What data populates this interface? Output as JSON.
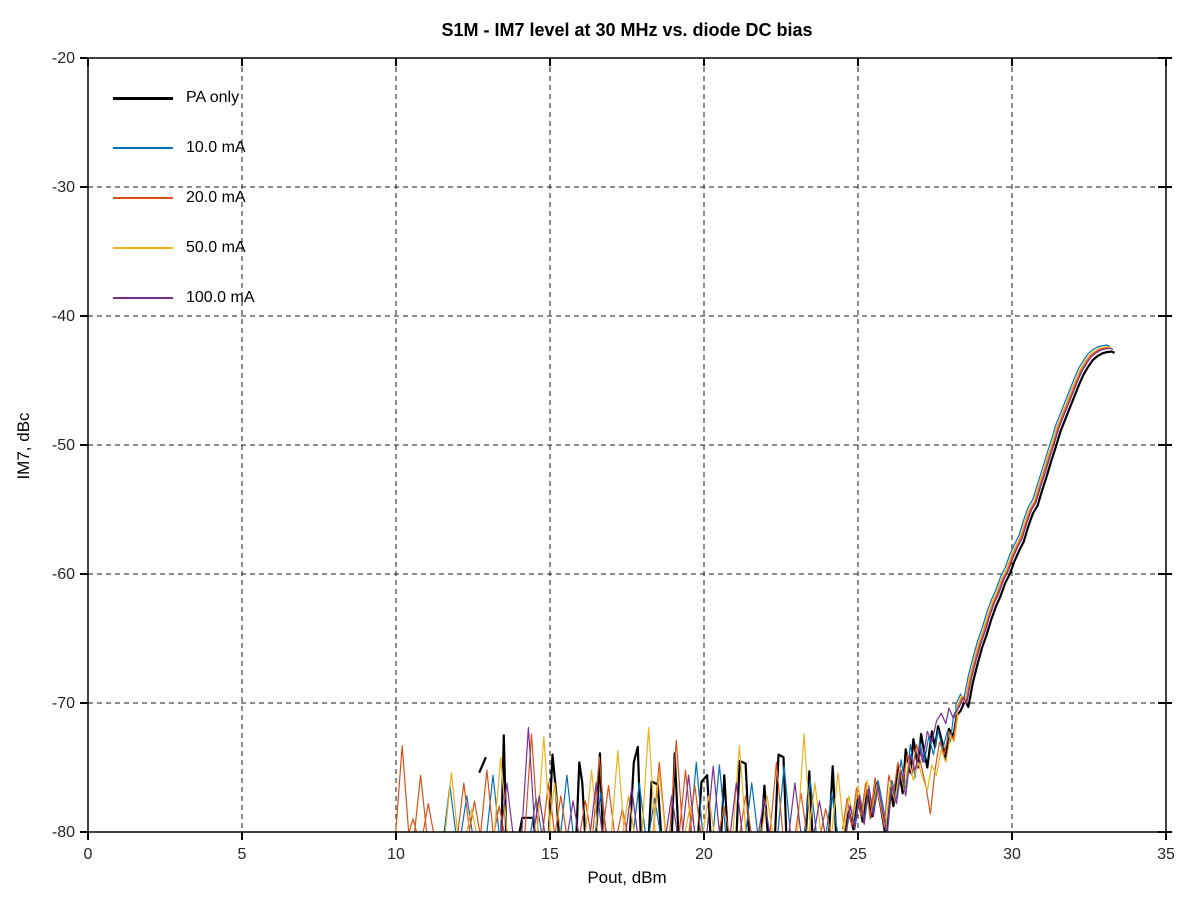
{
  "chart_data": {
    "type": "line",
    "title": "S1M - IM7 level at 30 MHz vs. diode DC bias",
    "xlabel": "Pout, dBm",
    "ylabel": "IM7, dBc",
    "xlim": [
      0,
      35
    ],
    "ylim": [
      -80,
      -20
    ],
    "xticks": [
      0,
      5,
      10,
      15,
      20,
      25,
      30,
      35
    ],
    "yticks": [
      -20,
      -30,
      -40,
      -50,
      -60,
      -70,
      -80
    ],
    "grid": true,
    "grid_style": "dashed",
    "grid_color": "#1a1a1a",
    "axis_color": "#000000",
    "background_color": "#ffffff",
    "legend_position": "upper-left-inside",
    "rise": [
      [
        28.3,
        -70.4
      ],
      [
        28.45,
        -69.6
      ],
      [
        28.55,
        -70.1
      ],
      [
        28.7,
        -68.2
      ],
      [
        28.85,
        -66.8
      ],
      [
        29.0,
        -65.5
      ],
      [
        29.15,
        -64.5
      ],
      [
        29.3,
        -63.3
      ],
      [
        29.45,
        -62.3
      ],
      [
        29.6,
        -61.5
      ],
      [
        29.75,
        -60.5
      ],
      [
        29.9,
        -59.8
      ],
      [
        30.05,
        -58.8
      ],
      [
        30.2,
        -58.0
      ],
      [
        30.35,
        -57.3
      ],
      [
        30.5,
        -56.1
      ],
      [
        30.65,
        -55.1
      ],
      [
        30.8,
        -54.5
      ],
      [
        30.95,
        -53.3
      ],
      [
        31.1,
        -52.2
      ],
      [
        31.25,
        -51.0
      ],
      [
        31.4,
        -49.9
      ],
      [
        31.55,
        -48.7
      ],
      [
        31.7,
        -47.8
      ],
      [
        31.85,
        -46.9
      ],
      [
        32.0,
        -46.0
      ],
      [
        32.15,
        -45.1
      ],
      [
        32.3,
        -44.3
      ],
      [
        32.45,
        -43.7
      ],
      [
        32.6,
        -43.2
      ],
      [
        32.75,
        -42.9
      ],
      [
        32.9,
        -42.7
      ],
      [
        33.05,
        -42.6
      ],
      [
        33.2,
        -42.55
      ],
      [
        33.3,
        -42.65
      ]
    ],
    "series": [
      {
        "name": "PA only",
        "color": "#000000",
        "width": 2.2,
        "rise_dx": 0.03,
        "rise_dy": -0.2,
        "spikes": [],
        "segments": [
          [
            [
              12.7,
              -75.4
            ],
            [
              12.92,
              -74.2
            ]
          ],
          [
            [
              13.42,
              -80.6
            ],
            [
              13.5,
              -72.5
            ],
            [
              13.58,
              -80.6
            ]
          ],
          [
            [
              13.98,
              -80.4
            ],
            [
              14.1,
              -78.9
            ],
            [
              14.45,
              -78.9
            ],
            [
              14.52,
              -80.4
            ]
          ],
          [
            [
              14.95,
              -80.6
            ],
            [
              15.08,
              -74.0
            ],
            [
              15.2,
              -77.0
            ],
            [
              15.3,
              -80.6
            ]
          ],
          [
            [
              15.85,
              -80.6
            ],
            [
              15.95,
              -74.6
            ],
            [
              16.05,
              -76.2
            ],
            [
              16.15,
              -80.6
            ]
          ],
          [
            [
              16.5,
              -80.6
            ],
            [
              16.62,
              -73.9
            ],
            [
              16.72,
              -80.6
            ]
          ],
          [
            [
              17.58,
              -80.6
            ],
            [
              17.72,
              -74.6
            ],
            [
              17.85,
              -73.4
            ],
            [
              17.95,
              -80.6
            ]
          ],
          [
            [
              18.2,
              -80.6
            ],
            [
              18.3,
              -76.1
            ],
            [
              18.5,
              -76.3
            ],
            [
              18.62,
              -80.6
            ]
          ],
          [
            [
              18.95,
              -80.6
            ],
            [
              19.05,
              -73.9
            ],
            [
              19.18,
              -80.6
            ]
          ],
          [
            [
              19.8,
              -80.6
            ],
            [
              19.92,
              -76.1
            ],
            [
              20.1,
              -75.6
            ],
            [
              20.22,
              -80.6
            ]
          ],
          [
            [
              20.55,
              -80.6
            ],
            [
              20.66,
              -75.6
            ],
            [
              20.78,
              -80.6
            ]
          ],
          [
            [
              21.05,
              -80.6
            ],
            [
              21.16,
              -74.5
            ],
            [
              21.35,
              -74.7
            ],
            [
              21.47,
              -80.6
            ]
          ],
          [
            [
              21.85,
              -80.6
            ],
            [
              21.96,
              -76.4
            ],
            [
              22.08,
              -80.6
            ]
          ],
          [
            [
              22.3,
              -80.6
            ],
            [
              22.42,
              -74.0
            ],
            [
              22.58,
              -74.2
            ],
            [
              22.68,
              -80.6
            ]
          ],
          [
            [
              23.3,
              -80.6
            ],
            [
              23.42,
              -75.3
            ],
            [
              23.53,
              -80.6
            ]
          ],
          [
            [
              24.05,
              -80.6
            ],
            [
              24.18,
              -74.9
            ],
            [
              24.3,
              -80.6
            ]
          ]
        ],
        "pre": [
          [
            24.55,
            -80.6
          ],
          [
            24.7,
            -78.4
          ],
          [
            24.85,
            -79.8
          ],
          [
            25.0,
            -77.4
          ],
          [
            25.15,
            -79.2
          ],
          [
            25.3,
            -76.8
          ],
          [
            25.45,
            -78.8
          ],
          [
            25.6,
            -76.2
          ],
          [
            25.75,
            -78.2
          ],
          [
            25.9,
            -80.4
          ],
          [
            26.05,
            -76.6
          ],
          [
            26.15,
            -78.0
          ],
          [
            26.3,
            -74.8
          ],
          [
            26.45,
            -77.0
          ],
          [
            26.55,
            -73.6
          ],
          [
            26.7,
            -75.4
          ],
          [
            26.8,
            -72.8
          ],
          [
            26.95,
            -75.0
          ],
          [
            27.05,
            -72.4
          ],
          [
            27.15,
            -73.8
          ],
          [
            27.25,
            -75.0
          ],
          [
            27.4,
            -72.2
          ],
          [
            27.5,
            -73.4
          ],
          [
            27.6,
            -71.8
          ],
          [
            27.75,
            -73.2
          ],
          [
            27.85,
            -74.4
          ],
          [
            27.95,
            -72.0
          ],
          [
            28.1,
            -72.6
          ],
          [
            28.2,
            -71.0
          ]
        ]
      },
      {
        "name": "10.0 mA",
        "color": "#0072BD",
        "width": 1.2,
        "rise_dx": -0.12,
        "rise_dy": 0.3,
        "spikes": [
          [
            11.75,
            -76.4
          ],
          [
            12.3,
            -77.2
          ],
          [
            13.15,
            -75.6
          ],
          [
            14.55,
            -77.4
          ],
          [
            15.55,
            -75.6
          ],
          [
            16.65,
            -77.0
          ],
          [
            17.9,
            -76.2
          ],
          [
            18.4,
            -77.4
          ],
          [
            19.75,
            -74.6
          ],
          [
            20.5,
            -74.8
          ],
          [
            21.55,
            -76.2
          ],
          [
            22.6,
            -74.9
          ],
          [
            23.45,
            -76.0
          ],
          [
            24.15,
            -77.0
          ]
        ],
        "segments": [],
        "pre": [
          [
            24.6,
            -80.2
          ],
          [
            24.75,
            -77.8
          ],
          [
            24.9,
            -79.4
          ],
          [
            25.05,
            -77.0
          ],
          [
            25.2,
            -79.0
          ],
          [
            25.35,
            -76.4
          ],
          [
            25.5,
            -78.6
          ],
          [
            25.65,
            -76.0
          ],
          [
            25.8,
            -77.8
          ],
          [
            25.95,
            -80.0
          ],
          [
            26.1,
            -76.0
          ],
          [
            26.25,
            -77.4
          ],
          [
            26.4,
            -74.4
          ],
          [
            26.55,
            -76.6
          ],
          [
            26.7,
            -73.2
          ],
          [
            26.85,
            -75.8
          ],
          [
            27.0,
            -73.0
          ],
          [
            27.15,
            -74.6
          ],
          [
            27.3,
            -72.6
          ],
          [
            27.45,
            -74.0
          ],
          [
            27.6,
            -72.1
          ],
          [
            27.75,
            -73.6
          ],
          [
            27.9,
            -72.2
          ],
          [
            28.0,
            -73.0
          ],
          [
            28.1,
            -71.0
          ],
          [
            28.18,
            -70.6
          ]
        ]
      },
      {
        "name": "20.0 mA",
        "color": "#D95319",
        "width": 1.2,
        "rise_dx": -0.05,
        "rise_dy": 0.1,
        "spikes": [
          [
            10.2,
            -73.3
          ],
          [
            10.55,
            -79.0
          ],
          [
            10.8,
            -75.6
          ],
          [
            11.05,
            -77.8
          ],
          [
            12.2,
            -76.2
          ],
          [
            12.55,
            -77.6
          ],
          [
            12.95,
            -75.2
          ],
          [
            13.35,
            -78.0
          ],
          [
            14.4,
            -72.4
          ],
          [
            14.95,
            -76.2
          ],
          [
            15.35,
            -77.2
          ],
          [
            16.15,
            -77.6
          ],
          [
            16.6,
            -74.2
          ],
          [
            16.9,
            -76.4
          ],
          [
            17.35,
            -78.2
          ],
          [
            18.55,
            -74.6
          ],
          [
            19.1,
            -72.9
          ],
          [
            19.4,
            -75.2
          ],
          [
            19.7,
            -76.4
          ],
          [
            20.65,
            -78.0
          ],
          [
            21.35,
            -77.2
          ],
          [
            22.35,
            -74.6
          ],
          [
            23.15,
            -77.0
          ],
          [
            23.95,
            -78.2
          ]
        ],
        "segments": [],
        "pre": [
          [
            24.5,
            -79.8
          ],
          [
            24.65,
            -77.4
          ],
          [
            24.8,
            -79.6
          ],
          [
            24.95,
            -76.6
          ],
          [
            25.1,
            -78.8
          ],
          [
            25.25,
            -76.2
          ],
          [
            25.4,
            -79.0
          ],
          [
            25.55,
            -75.8
          ],
          [
            25.7,
            -77.6
          ],
          [
            25.85,
            -79.6
          ],
          [
            26.0,
            -75.6
          ],
          [
            26.15,
            -77.0
          ],
          [
            26.3,
            -74.6
          ],
          [
            26.45,
            -76.2
          ],
          [
            26.6,
            -74.0
          ],
          [
            26.75,
            -75.6
          ],
          [
            26.9,
            -73.2
          ],
          [
            27.05,
            -74.8
          ],
          [
            27.2,
            -76.4
          ],
          [
            27.35,
            -78.6
          ],
          [
            27.5,
            -75.2
          ],
          [
            27.65,
            -73.0
          ],
          [
            27.8,
            -74.0
          ],
          [
            27.95,
            -72.2
          ],
          [
            28.1,
            -72.8
          ],
          [
            28.22,
            -70.8
          ]
        ]
      },
      {
        "name": "50.0 mA",
        "color": "#EDB120",
        "width": 1.2,
        "rise_dx": -0.08,
        "rise_dy": 0.18,
        "spikes": [
          [
            11.8,
            -75.4
          ],
          [
            12.45,
            -78.2
          ],
          [
            13.4,
            -74.2
          ],
          [
            14.8,
            -72.6
          ],
          [
            15.15,
            -76.2
          ],
          [
            16.35,
            -75.2
          ],
          [
            17.2,
            -73.7
          ],
          [
            17.55,
            -77.2
          ],
          [
            18.2,
            -71.9
          ],
          [
            18.55,
            -75.4
          ],
          [
            19.55,
            -78.0
          ],
          [
            20.15,
            -77.2
          ],
          [
            21.15,
            -73.3
          ],
          [
            22.05,
            -77.2
          ],
          [
            23.25,
            -72.4
          ],
          [
            23.6,
            -76.2
          ],
          [
            24.35,
            -75.4
          ]
        ],
        "segments": [],
        "pre": [
          [
            24.55,
            -80.0
          ],
          [
            24.7,
            -77.2
          ],
          [
            24.85,
            -79.0
          ],
          [
            25.0,
            -76.4
          ],
          [
            25.15,
            -78.6
          ],
          [
            25.3,
            -76.0
          ],
          [
            25.45,
            -78.4
          ],
          [
            25.6,
            -76.4
          ],
          [
            25.75,
            -78.0
          ],
          [
            25.9,
            -79.8
          ],
          [
            26.05,
            -76.2
          ],
          [
            26.2,
            -77.6
          ],
          [
            26.35,
            -75.0
          ],
          [
            26.5,
            -76.8
          ],
          [
            26.65,
            -74.4
          ],
          [
            26.8,
            -76.0
          ],
          [
            26.95,
            -74.6
          ],
          [
            27.1,
            -75.8
          ],
          [
            27.25,
            -76.8
          ],
          [
            27.4,
            -74.8
          ],
          [
            27.55,
            -75.6
          ],
          [
            27.7,
            -73.6
          ],
          [
            27.85,
            -74.6
          ],
          [
            28.0,
            -72.6
          ],
          [
            28.12,
            -73.0
          ],
          [
            28.24,
            -71.0
          ]
        ]
      },
      {
        "name": "100.0 mA",
        "color": "#7E2F8E",
        "width": 1.2,
        "rise_dx": -0.02,
        "rise_dy": 0.05,
        "spikes": [
          [
            13.6,
            -76.2
          ],
          [
            14.3,
            -71.9
          ],
          [
            14.65,
            -77.2
          ],
          [
            15.75,
            -77.6
          ],
          [
            16.5,
            -76.2
          ],
          [
            17.65,
            -76.6
          ],
          [
            18.95,
            -77.2
          ],
          [
            19.5,
            -75.6
          ],
          [
            20.3,
            -74.9
          ],
          [
            21.05,
            -76.2
          ],
          [
            21.95,
            -77.4
          ],
          [
            22.95,
            -76.2
          ],
          [
            23.75,
            -77.6
          ]
        ],
        "segments": [],
        "pre": [
          [
            24.6,
            -80.4
          ],
          [
            24.75,
            -78.0
          ],
          [
            24.9,
            -79.8
          ],
          [
            25.05,
            -77.2
          ],
          [
            25.2,
            -79.4
          ],
          [
            25.35,
            -76.6
          ],
          [
            25.5,
            -78.8
          ],
          [
            25.65,
            -76.4
          ],
          [
            25.8,
            -78.4
          ],
          [
            25.95,
            -80.2
          ],
          [
            26.1,
            -76.4
          ],
          [
            26.25,
            -77.8
          ],
          [
            26.4,
            -75.2
          ],
          [
            26.55,
            -77.2
          ],
          [
            26.7,
            -74.0
          ],
          [
            26.85,
            -75.2
          ],
          [
            27.0,
            -73.4
          ],
          [
            27.1,
            -74.6
          ],
          [
            27.25,
            -72.2
          ],
          [
            27.4,
            -73.0
          ],
          [
            27.55,
            -71.4
          ],
          [
            27.7,
            -70.8
          ],
          [
            27.85,
            -71.6
          ],
          [
            27.95,
            -70.4
          ],
          [
            28.1,
            -71.2
          ],
          [
            28.2,
            -70.6
          ]
        ]
      }
    ]
  }
}
